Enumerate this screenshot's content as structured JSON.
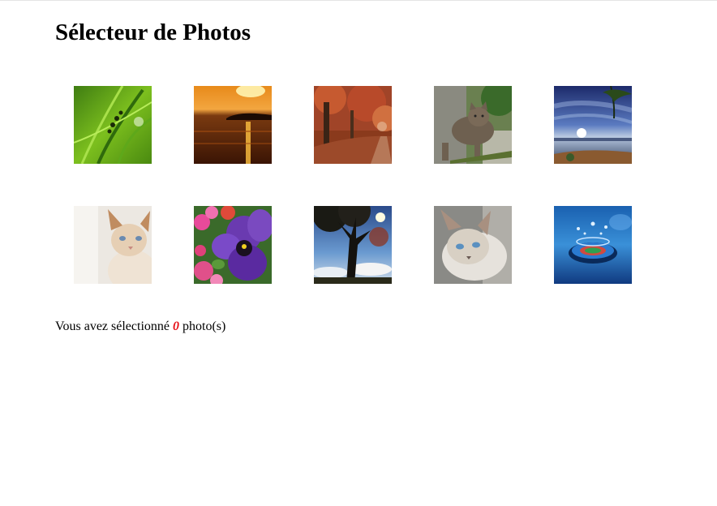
{
  "page": {
    "title": "Sélecteur de Photos"
  },
  "photos": [
    {
      "subject": "grass-with-ladybugs"
    },
    {
      "subject": "sunset-over-lake"
    },
    {
      "subject": "autumn-trees-path"
    },
    {
      "subject": "tabby-cat-walking"
    },
    {
      "subject": "sunrise-sky-beach"
    },
    {
      "subject": "cream-kitten"
    },
    {
      "subject": "purple-pansy-flowers"
    },
    {
      "subject": "tree-silhouette-sky"
    },
    {
      "subject": "siamese-cat-lying"
    },
    {
      "subject": "water-drop-splash"
    }
  ],
  "selection": {
    "prefix": "Vous avez sélectionné",
    "count": "0",
    "suffix": "photo(s)",
    "count_color": "#e8141c"
  }
}
